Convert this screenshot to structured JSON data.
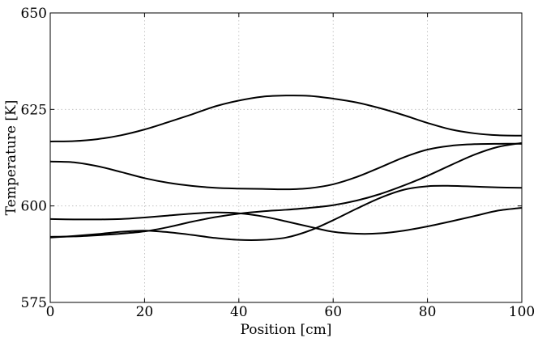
{
  "chart_data": {
    "type": "line",
    "title": "",
    "xlabel": "Position [cm]",
    "ylabel": "Temperature [K]",
    "xlim": [
      0,
      100
    ],
    "ylim": [
      575,
      650
    ],
    "xticks": [
      0,
      20,
      40,
      60,
      80,
      100
    ],
    "yticks": [
      575,
      600,
      625,
      650
    ],
    "xtick_labels": [
      "0",
      "20",
      "40",
      "60",
      "80",
      "100"
    ],
    "ytick_labels": [
      "575",
      "600",
      "625",
      "650"
    ],
    "grid": true,
    "line_color": "#000000",
    "series": [
      {
        "x": [
          0,
          5,
          10,
          15,
          20,
          25,
          30,
          35,
          40,
          45,
          50,
          55,
          60,
          65,
          70,
          75,
          80,
          85,
          90,
          95,
          100
        ],
        "values": [
          616.7,
          616.8,
          617.3,
          618.3,
          619.8,
          621.7,
          623.7,
          625.8,
          627.3,
          628.3,
          628.6,
          628.5,
          627.8,
          626.8,
          625.3,
          623.5,
          621.5,
          619.8,
          618.8,
          618.3,
          618.2
        ]
      },
      {
        "x": [
          0,
          5,
          10,
          15,
          20,
          25,
          30,
          35,
          40,
          45,
          50,
          55,
          60,
          65,
          70,
          75,
          80,
          85,
          90,
          95,
          100
        ],
        "values": [
          611.5,
          611.3,
          610.3,
          608.8,
          607.2,
          606.0,
          605.2,
          604.7,
          604.5,
          604.4,
          604.3,
          604.6,
          605.6,
          607.5,
          610.0,
          612.6,
          614.6,
          615.6,
          616.0,
          616.1,
          616.1
        ]
      },
      {
        "x": [
          0,
          5,
          10,
          15,
          20,
          25,
          30,
          35,
          40,
          45,
          50,
          55,
          60,
          65,
          70,
          75,
          80,
          85,
          90,
          95,
          100
        ],
        "values": [
          596.6,
          596.5,
          596.5,
          596.6,
          597.0,
          597.5,
          598.0,
          598.3,
          598.1,
          597.3,
          596.0,
          594.6,
          593.3,
          592.8,
          592.9,
          593.6,
          594.7,
          596.0,
          597.4,
          598.8,
          599.5
        ]
      },
      {
        "x": [
          0,
          5,
          10,
          15,
          20,
          25,
          30,
          35,
          40,
          45,
          50,
          55,
          60,
          65,
          70,
          75,
          80,
          85,
          90,
          95,
          100
        ],
        "values": [
          591.8,
          592.2,
          592.7,
          593.3,
          593.6,
          593.2,
          592.5,
          591.7,
          591.2,
          591.2,
          591.8,
          593.6,
          596.3,
          599.3,
          602.1,
          604.2,
          605.1,
          605.2,
          605.0,
          604.8,
          604.7
        ]
      },
      {
        "x": [
          0,
          5,
          10,
          15,
          20,
          25,
          30,
          35,
          40,
          45,
          50,
          55,
          60,
          65,
          70,
          75,
          80,
          85,
          90,
          95,
          100
        ],
        "values": [
          592.0,
          592.1,
          592.4,
          592.8,
          593.4,
          594.5,
          595.9,
          597.1,
          598.0,
          598.6,
          599.0,
          599.5,
          600.2,
          601.4,
          603.1,
          605.3,
          607.8,
          610.6,
          613.3,
          615.3,
          616.3
        ]
      }
    ]
  }
}
